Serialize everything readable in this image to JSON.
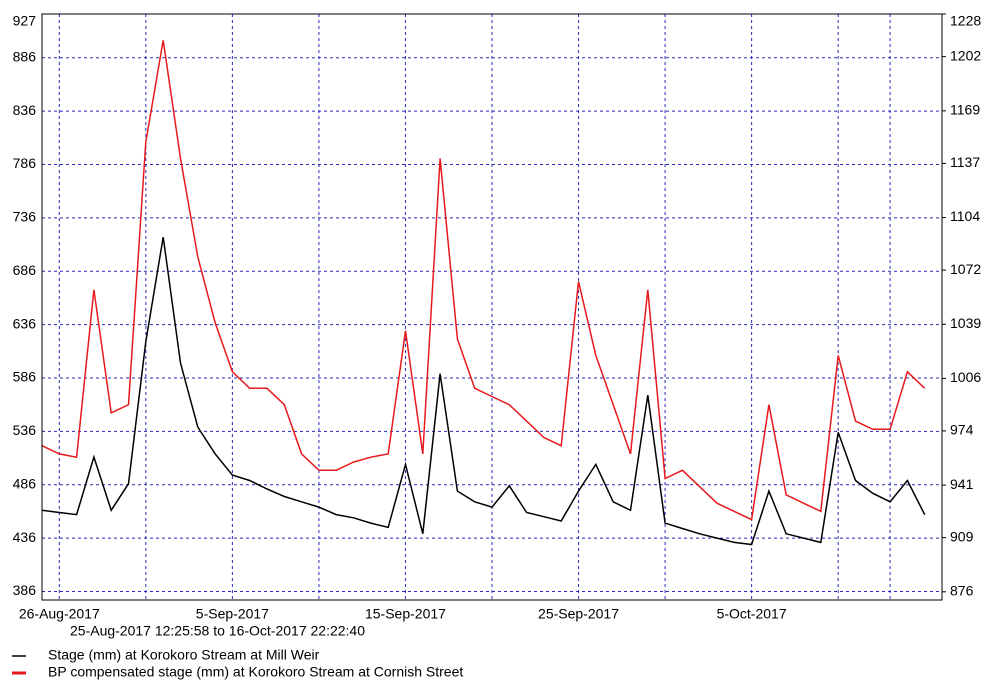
{
  "chart_data": {
    "type": "line",
    "subtitle": "25-Aug-2017  12:25:58 to 16-Oct-2017 22:22:40",
    "x": [
      "2017-08-25",
      "2017-08-26",
      "2017-08-27",
      "2017-08-28",
      "2017-08-29",
      "2017-08-30",
      "2017-08-31",
      "2017-09-01",
      "2017-09-02",
      "2017-09-03",
      "2017-09-04",
      "2017-09-05",
      "2017-09-06",
      "2017-09-07",
      "2017-09-08",
      "2017-09-09",
      "2017-09-10",
      "2017-09-11",
      "2017-09-12",
      "2017-09-13",
      "2017-09-14",
      "2017-09-15",
      "2017-09-16",
      "2017-09-17",
      "2017-09-18",
      "2017-09-19",
      "2017-09-20",
      "2017-09-21",
      "2017-09-22",
      "2017-09-23",
      "2017-09-24",
      "2017-09-25",
      "2017-09-26",
      "2017-09-27",
      "2017-09-28",
      "2017-09-29",
      "2017-09-30",
      "2017-10-01",
      "2017-10-02",
      "2017-10-03",
      "2017-10-04",
      "2017-10-05",
      "2017-10-06",
      "2017-10-07",
      "2017-10-08",
      "2017-10-09",
      "2017-10-10",
      "2017-10-11",
      "2017-10-12",
      "2017-10-13",
      "2017-10-14",
      "2017-10-15"
    ],
    "series": [
      {
        "name": "Stage (mm) at Korokoro Stream at Mill Weir",
        "color": "#000000",
        "values": [
          462,
          460,
          458,
          512,
          462,
          487,
          620,
          718,
          600,
          540,
          515,
          495,
          490,
          482,
          475,
          470,
          465,
          458,
          455,
          450,
          446,
          505,
          440,
          590,
          480,
          470,
          465,
          485,
          460,
          456,
          452,
          480,
          505,
          470,
          462,
          570,
          450,
          445,
          440,
          436,
          432,
          430,
          480,
          440,
          436,
          432,
          535,
          490,
          478,
          470,
          490,
          458
        ]
      },
      {
        "name": "BP compensated stage (mm) at Korokoro Stream at Cornish Street",
        "color": "#e8191c",
        "axis": "y2",
        "values": [
          965,
          960,
          958,
          1060,
          985,
          990,
          1150,
          1212,
          1140,
          1080,
          1040,
          1010,
          1000,
          1000,
          990,
          960,
          950,
          950,
          955,
          958,
          960,
          1035,
          960,
          1140,
          1030,
          1000,
          995,
          990,
          980,
          970,
          965,
          1065,
          1020,
          990,
          960,
          1060,
          945,
          950,
          940,
          930,
          925,
          920,
          990,
          935,
          930,
          925,
          1020,
          980,
          975,
          975,
          1010,
          1000
        ]
      }
    ],
    "xlim": [
      "2017-08-25",
      "2017-10-16"
    ],
    "xticks": [
      {
        "value": "2017-08-26",
        "label": "26-Aug-2017"
      },
      {
        "value": "2017-09-05",
        "label": "5-Sep-2017"
      },
      {
        "value": "2017-09-15",
        "label": "15-Sep-2017"
      },
      {
        "value": "2017-09-25",
        "label": "25-Sep-2017"
      },
      {
        "value": "2017-10-05",
        "label": "5-Oct-2017"
      }
    ],
    "xminor": [
      "2017-08-31",
      "2017-09-10",
      "2017-09-20",
      "2017-09-30",
      "2017-10-10",
      "2017-10-13"
    ],
    "ylim": [
      378,
      927
    ],
    "yticks": [
      386,
      436,
      486,
      536,
      586,
      636,
      686,
      736,
      786,
      836,
      886,
      927
    ],
    "y2lim": [
      871,
      1228
    ],
    "y2ticks": [
      876,
      909,
      941,
      974,
      1006,
      1039,
      1072,
      1104,
      1137,
      1169,
      1202,
      1228
    ],
    "grid": true
  }
}
